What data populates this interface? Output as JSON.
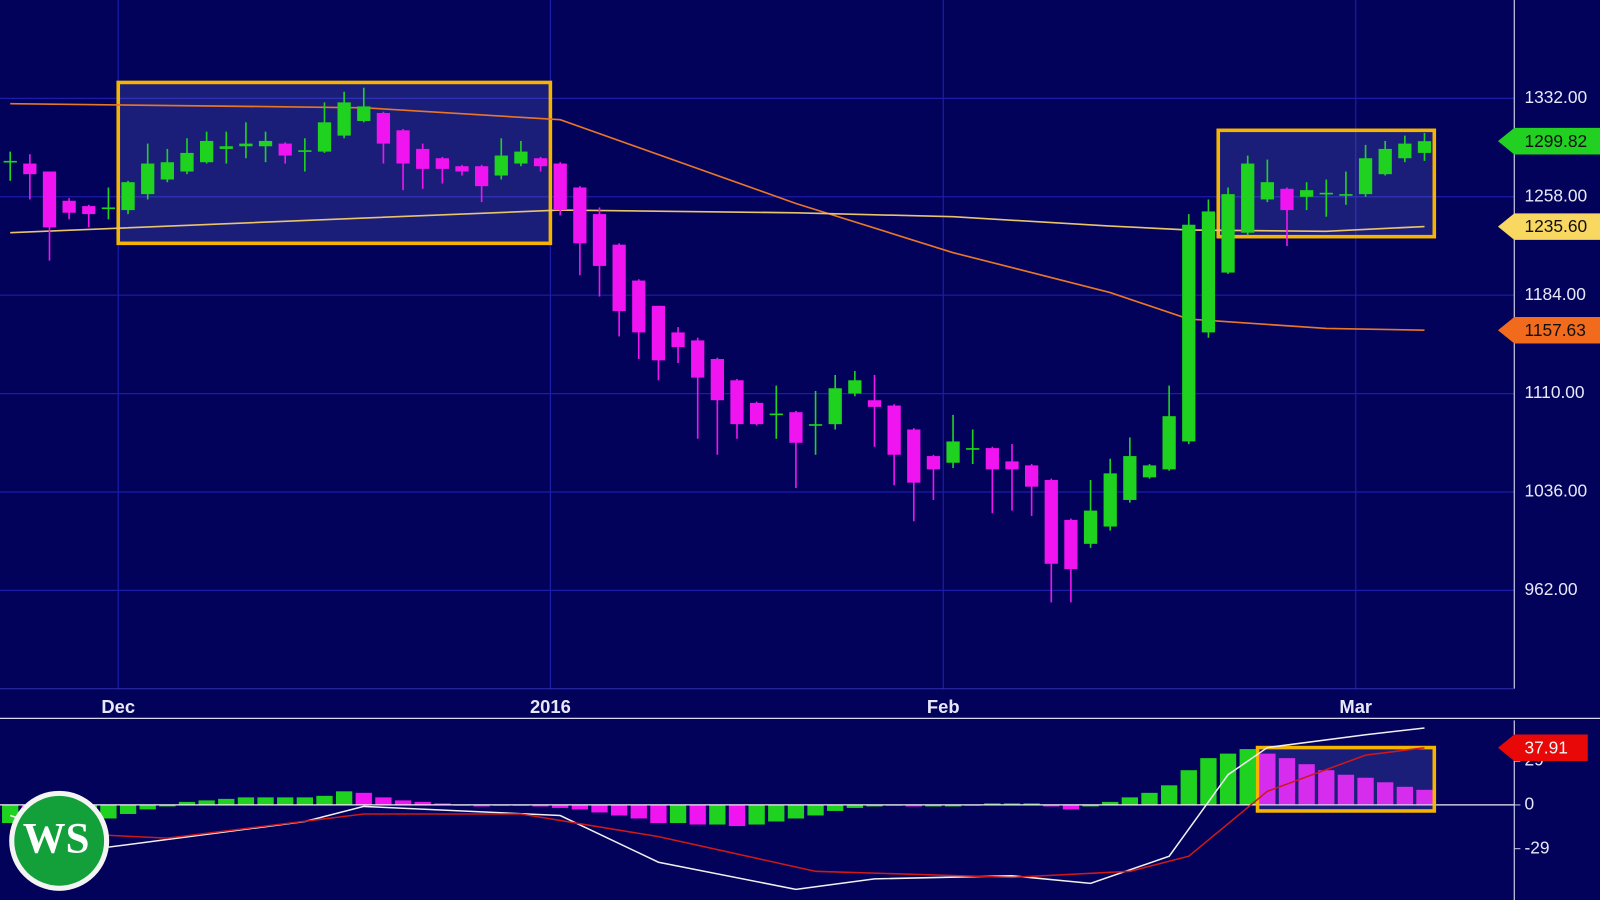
{
  "chart_data": [
    {
      "type": "candlestick",
      "categories": [
        null,
        null,
        null,
        null,
        null,
        null,
        "Dec",
        null,
        null,
        null,
        null,
        null,
        null,
        null,
        null,
        null,
        null,
        null,
        null,
        null,
        null,
        null,
        null,
        null,
        null,
        null,
        null,
        null,
        "2016",
        null,
        null,
        null,
        null,
        null,
        null,
        null,
        null,
        null,
        null,
        null,
        null,
        null,
        null,
        null,
        null,
        null,
        null,
        null,
        "Feb",
        null,
        null,
        null,
        null,
        null,
        null,
        null,
        null,
        null,
        null,
        null,
        null,
        null,
        null,
        null,
        null,
        null,
        null,
        null,
        null,
        "Mar",
        null,
        null,
        null
      ],
      "open": [
        1284,
        1283,
        1277,
        1255,
        1251,
        1249,
        1248,
        1260,
        1271,
        1277,
        1284,
        1294,
        1296,
        1296,
        1298,
        1292,
        1292,
        1304,
        1315,
        1321,
        1308,
        1294,
        1287,
        1281,
        1281,
        1274,
        1283,
        1287,
        1283,
        1265,
        1245,
        1222,
        1195,
        1176,
        1156,
        1150,
        1136,
        1120,
        1103,
        1094,
        1096,
        1086,
        1087,
        1110,
        1105,
        1101,
        1083,
        1063,
        1058,
        1068,
        1069,
        1059,
        1056,
        1045,
        1015,
        997,
        1010,
        1030,
        1047,
        1053,
        1074,
        1156,
        1201,
        1231,
        1256,
        1264,
        1258,
        1260,
        1259,
        1260,
        1275,
        1287,
        1291
      ],
      "high": [
        1292,
        1290,
        1277,
        1257,
        1252,
        1265,
        1270,
        1298,
        1294,
        1302,
        1307,
        1307,
        1314,
        1307,
        1299,
        1302,
        1329,
        1337,
        1340,
        1322,
        1309,
        1298,
        1288,
        1282,
        1282,
        1302,
        1300,
        1288,
        1284,
        1266,
        1250,
        1223,
        1196,
        1176,
        1160,
        1152,
        1137,
        1121,
        1104,
        1116,
        1097,
        1112,
        1124,
        1127,
        1124,
        1102,
        1084,
        1064,
        1094,
        1083,
        1070,
        1072,
        1057,
        1046,
        1016,
        1045,
        1061,
        1077,
        1057,
        1116,
        1245,
        1256,
        1265,
        1289,
        1286,
        1265,
        1269,
        1271,
        1277,
        1297,
        1300,
        1304,
        1306
      ],
      "low": [
        1270,
        1256,
        1210,
        1241,
        1235,
        1241,
        1245,
        1256,
        1269,
        1275,
        1283,
        1283,
        1287,
        1284,
        1283,
        1277,
        1291,
        1302,
        1314,
        1283,
        1263,
        1264,
        1268,
        1274,
        1254,
        1271,
        1281,
        1277,
        1244,
        1199,
        1183,
        1153,
        1136,
        1120,
        1133,
        1076,
        1064,
        1076,
        1086,
        1076,
        1039,
        1064,
        1083,
        1108,
        1070,
        1041,
        1014,
        1030,
        1054,
        1057,
        1020,
        1022,
        1018,
        953,
        953,
        994,
        1007,
        1028,
        1046,
        1052,
        1072,
        1152,
        1200,
        1229,
        1254,
        1221,
        1248,
        1243,
        1252,
        1258,
        1274,
        1284,
        1285
      ],
      "close": [
        1285,
        1275,
        1235,
        1246,
        1245,
        1250,
        1269,
        1283,
        1284,
        1291,
        1300,
        1296,
        1298,
        1300,
        1289,
        1293,
        1314,
        1329,
        1326,
        1298,
        1283,
        1279,
        1279,
        1277,
        1266,
        1289,
        1292,
        1281,
        1248,
        1223,
        1206,
        1172,
        1156,
        1135,
        1145,
        1122,
        1105,
        1087,
        1087,
        1095,
        1073,
        1087,
        1114,
        1120,
        1100,
        1064,
        1043,
        1053,
        1074,
        1069,
        1053,
        1053,
        1040,
        982,
        978,
        1022,
        1050,
        1063,
        1056,
        1093,
        1237,
        1247,
        1260,
        1283,
        1269,
        1248,
        1263,
        1261,
        1260,
        1287,
        1294,
        1298,
        1299.82
      ],
      "up_color": "#1fd21f",
      "down_color": "#f014f0",
      "ylim": [
        888,
        1406
      ],
      "yticks": [
        {
          "value": 962,
          "label": "962.00"
        },
        {
          "value": 1036,
          "label": "1036.00"
        },
        {
          "value": 1110,
          "label": "1110.00"
        },
        {
          "value": 1184,
          "label": "1184.00"
        },
        {
          "value": 1258,
          "label": "1258.00"
        },
        {
          "value": 1332,
          "label": "1332.00"
        }
      ],
      "grid": true,
      "overlays": [
        {
          "color": "#e8762a",
          "x": [
            0,
            18,
            28,
            40,
            48,
            56,
            60,
            67,
            72
          ],
          "values": [
            1328,
            1325,
            1316,
            1253,
            1216,
            1186,
            1166,
            1159,
            1157.63
          ]
        },
        {
          "color": "#e8c46a",
          "x": [
            0,
            18,
            28,
            40,
            48,
            56,
            60,
            67,
            72
          ],
          "values": [
            1231,
            1242,
            1248,
            1246,
            1243,
            1236,
            1233,
            1232,
            1235.6
          ]
        }
      ],
      "price_tags": [
        {
          "value": 1299.82,
          "label": "1299.82",
          "color": "#22d022"
        },
        {
          "value": 1235.6,
          "label": "1235.60",
          "color": "#f8d860"
        },
        {
          "value": 1157.63,
          "label": "1157.63",
          "color": "#f26a1c"
        }
      ],
      "highlights": [
        {
          "x": [
            6,
            28
          ],
          "y": [
            1223,
            1344
          ]
        },
        {
          "x": [
            62,
            73
          ],
          "y": [
            1228,
            1308
          ]
        }
      ]
    },
    {
      "type": "macd",
      "values": [
        -12,
        -13,
        -12,
        -11,
        -10,
        -9,
        -6,
        -3,
        -1,
        2,
        3,
        4,
        5,
        5,
        5,
        5,
        6,
        9,
        8,
        5,
        3,
        2,
        1,
        0,
        -1,
        0,
        0,
        -1,
        -2,
        -3,
        -5,
        -7,
        -9,
        -12,
        -12,
        -13,
        -13,
        -14,
        -13,
        -11,
        -9,
        -7,
        -4,
        -2,
        -1,
        0,
        -1,
        -1,
        -1,
        0,
        1,
        1,
        1,
        -1,
        -3,
        -1,
        2,
        5,
        8,
        13,
        23,
        31,
        34,
        37,
        34,
        31,
        27,
        23,
        20,
        18,
        15,
        12,
        10
      ],
      "up_color": "#1fd21f",
      "down_color": "#f014f0",
      "ylim": [
        -63,
        56
      ],
      "yticks": [
        -29,
        0,
        29
      ],
      "lines": [
        {
          "color": "#f0f0f0",
          "x": [
            0,
            5,
            15,
            18,
            28,
            33,
            40,
            44,
            51,
            55,
            59,
            62,
            64,
            69,
            72
          ],
          "values": [
            -7,
            -28,
            -11,
            -1,
            -7,
            -38,
            -56,
            -49,
            -47,
            -52,
            -34,
            20,
            38,
            46.5,
            51
          ]
        },
        {
          "color": "#d01818",
          "x": [
            0,
            8,
            18,
            26,
            33,
            41,
            51,
            57,
            60,
            64,
            69,
            72
          ],
          "values": [
            -17,
            -22,
            -6,
            -6,
            -21,
            -44,
            -48,
            -44,
            -34,
            9,
            33,
            37.91
          ]
        }
      ],
      "tags": [
        {
          "value": 37.91,
          "color": "#e80808"
        }
      ],
      "highlights": [
        {
          "x": [
            64,
            73
          ],
          "y": [
            -4,
            38
          ]
        }
      ]
    }
  ],
  "logo": "WS"
}
